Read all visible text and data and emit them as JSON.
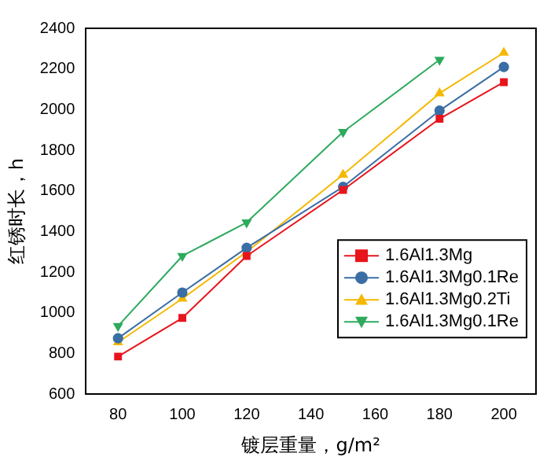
{
  "chart_data": {
    "type": "line",
    "xlabel": "镀层重量，g/m²",
    "ylabel": "红锈时长，h",
    "x": [
      80,
      100,
      120,
      150,
      180,
      200
    ],
    "series": [
      {
        "name": "1.6Al1.3Mg",
        "color": "#e8141c",
        "marker": "square",
        "values": [
          785,
          975,
          1280,
          1605,
          1955,
          2135
        ]
      },
      {
        "name": "1.6Al1.3Mg0.1Re",
        "color": "#3a6ea5",
        "marker": "circle",
        "values": [
          875,
          1100,
          1320,
          1620,
          1995,
          2210
        ]
      },
      {
        "name": "1.6Al1.3Mg0.2Ti",
        "color": "#f5b800",
        "marker": "triangle",
        "values": [
          855,
          1070,
          1300,
          1680,
          2080,
          2280
        ]
      },
      {
        "name": "1.6Al1.3Mg0.1Re",
        "color": "#2eaa5e",
        "marker": "triangle-down",
        "values": [
          935,
          1280,
          1445,
          1890,
          2245,
          null
        ]
      }
    ],
    "xlim": [
      70,
      210
    ],
    "xticks": [
      80,
      100,
      120,
      140,
      160,
      180,
      200
    ],
    "ylim": [
      600,
      2400
    ],
    "yticks": [
      600,
      800,
      1000,
      1200,
      1400,
      1600,
      1800,
      2000,
      2200,
      2400
    ],
    "grid": false,
    "legend": "bottom right",
    "line_style": "solid"
  }
}
